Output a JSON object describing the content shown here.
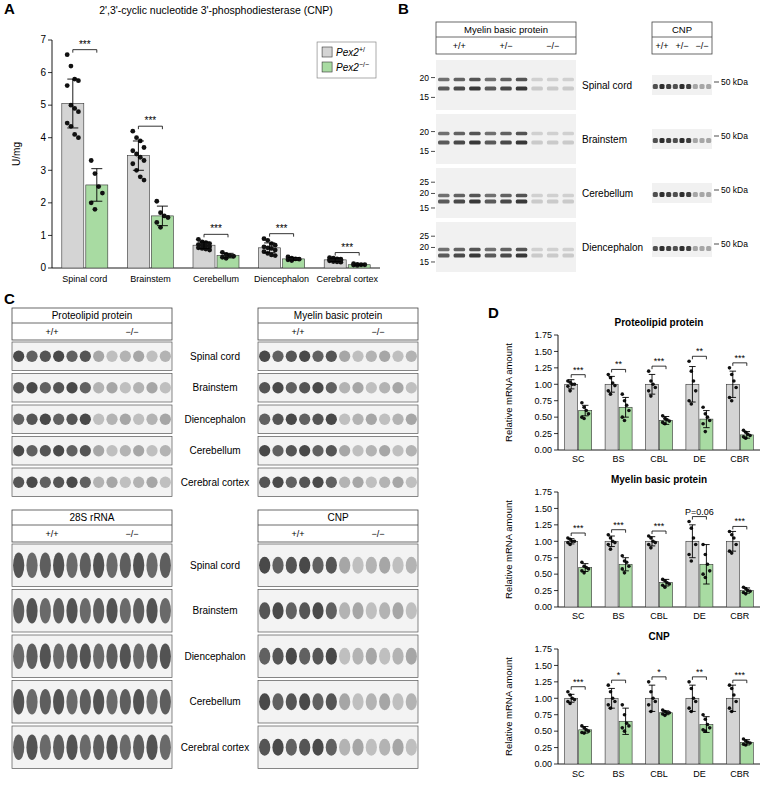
{
  "chart_data": [
    {
      "type": "bar",
      "panel": "A",
      "title": "2',3'-cyclic nucleotide 3'-phosphodiesterase (CNP)",
      "y_label": "U/mg",
      "categories": [
        "Spinal cord",
        "Brainstem",
        "Cerebellum",
        "Diencephalon",
        "Cerebral cortex"
      ],
      "series": [
        {
          "name": "Pex2+/",
          "color": "#d4d4d4",
          "values": [
            5.05,
            3.45,
            0.7,
            0.62,
            0.25
          ],
          "errors": [
            0.75,
            0.45,
            0.1,
            0.15,
            0.05
          ],
          "points": [
            [
              6.55,
              6.2,
              5.8,
              5.75,
              5.6,
              5.0,
              4.9,
              4.8,
              4.45,
              4.35,
              4.1,
              4.0
            ],
            [
              4.2,
              4.0,
              3.9,
              3.7,
              3.6,
              3.5,
              3.4,
              3.3,
              3.2,
              3.0,
              2.8,
              2.7
            ],
            [
              0.88,
              0.8,
              0.78,
              0.75,
              0.72,
              0.7,
              0.68,
              0.65,
              0.62,
              0.6,
              0.58,
              0.55
            ],
            [
              0.9,
              0.85,
              0.75,
              0.7,
              0.65,
              0.62,
              0.6,
              0.55,
              0.5,
              0.45,
              0.4,
              0.38
            ],
            [
              0.32,
              0.3,
              0.28,
              0.27,
              0.26,
              0.25,
              0.24,
              0.23,
              0.22,
              0.2,
              0.19,
              0.18
            ]
          ]
        },
        {
          "name": "Pex2−/−",
          "color": "#a8dba2",
          "values": [
            2.55,
            1.6,
            0.38,
            0.28,
            0.1
          ],
          "errors": [
            0.5,
            0.3,
            0.07,
            0.04,
            0.02
          ],
          "points": [
            [
              3.3,
              2.9,
              2.5,
              2.3,
              2.0,
              1.8
            ],
            [
              2.05,
              1.7,
              1.6,
              1.55,
              1.4,
              1.25
            ],
            [
              0.48,
              0.42,
              0.38,
              0.36,
              0.33,
              0.3
            ],
            [
              0.34,
              0.3,
              0.28,
              0.27,
              0.25,
              0.23
            ],
            [
              0.13,
              0.11,
              0.1,
              0.1,
              0.09,
              0.08
            ]
          ]
        }
      ],
      "annotations": [
        "***",
        "***",
        "***",
        "***",
        "***"
      ],
      "ylim": [
        0,
        7
      ],
      "yticks": [
        0,
        1,
        2,
        3,
        4,
        5,
        6,
        7
      ],
      "grid": false,
      "legend": "top-right"
    },
    {
      "type": "bar",
      "panel": "D",
      "title": "Proteolipid protein",
      "y_label": "Relative mRNA amount",
      "categories": [
        "SC",
        "BS",
        "CBL",
        "DE",
        "CBR"
      ],
      "series": [
        {
          "color": "#d4d4d4",
          "values": [
            1.0,
            1.0,
            1.0,
            1.0,
            1.0
          ],
          "errors": [
            0.07,
            0.12,
            0.15,
            0.27,
            0.2
          ],
          "points": [
            [
              1.05,
              1.03,
              1.0,
              1.0,
              0.97,
              0.9
            ],
            [
              1.15,
              1.1,
              1.02,
              0.98,
              0.9,
              0.85
            ],
            [
              1.2,
              1.05,
              1.0,
              0.95,
              0.9,
              0.82
            ],
            [
              1.35,
              1.2,
              1.05,
              0.9,
              0.75,
              0.7
            ],
            [
              1.25,
              1.15,
              1.05,
              0.95,
              0.8,
              0.75
            ]
          ]
        },
        {
          "color": "#a8dba2",
          "values": [
            0.6,
            0.65,
            0.45,
            0.47,
            0.23
          ],
          "errors": [
            0.08,
            0.15,
            0.06,
            0.13,
            0.05
          ],
          "points": [
            [
              0.72,
              0.65,
              0.6,
              0.55,
              0.5,
              0.48
            ],
            [
              0.85,
              0.75,
              0.68,
              0.6,
              0.5,
              0.45
            ],
            [
              0.52,
              0.48,
              0.46,
              0.44,
              0.42,
              0.4
            ],
            [
              0.65,
              0.55,
              0.5,
              0.45,
              0.4,
              0.28
            ],
            [
              0.3,
              0.27,
              0.24,
              0.22,
              0.2,
              0.18
            ]
          ]
        }
      ],
      "annotations": [
        "***",
        "**",
        "***",
        "**",
        "***"
      ],
      "ylim": [
        0,
        1.75
      ],
      "yticks": [
        {
          "value": 0,
          "label": "0.00"
        },
        0.25,
        {
          "value": 0.5,
          "label": "0.50"
        },
        0.75,
        {
          "value": 1,
          "label": "1.00"
        },
        1.25,
        {
          "value": 1.5,
          "label": "1.50"
        },
        1.75
      ],
      "grid": false
    },
    {
      "type": "bar",
      "title": "Myelin basic protein",
      "y_label": "Relative mRNA amount",
      "categories": [
        "SC",
        "BS",
        "CBL",
        "DE",
        "CBR"
      ],
      "series": [
        {
          "color": "#d4d4d4",
          "values": [
            1.0,
            1.0,
            1.0,
            1.0,
            1.0
          ],
          "errors": [
            0.04,
            0.08,
            0.07,
            0.25,
            0.15
          ],
          "points": [
            [
              1.05,
              1.03,
              1.0,
              1.0,
              0.98,
              0.95
            ],
            [
              1.1,
              1.05,
              1.0,
              0.98,
              0.95,
              0.88
            ],
            [
              1.08,
              1.05,
              1.0,
              0.98,
              0.95,
              0.9
            ],
            [
              1.3,
              1.2,
              1.05,
              0.95,
              0.8,
              0.7
            ],
            [
              1.15,
              1.1,
              1.05,
              0.95,
              0.85,
              0.82
            ]
          ]
        },
        {
          "color": "#a8dba2",
          "values": [
            0.6,
            0.65,
            0.37,
            0.65,
            0.25
          ],
          "errors": [
            0.06,
            0.1,
            0.05,
            0.3,
            0.04
          ],
          "points": [
            [
              0.68,
              0.62,
              0.6,
              0.58,
              0.55,
              0.52
            ],
            [
              0.78,
              0.7,
              0.68,
              0.62,
              0.58,
              0.52
            ],
            [
              0.42,
              0.4,
              0.37,
              0.35,
              0.33,
              0.3
            ],
            [
              0.95,
              0.8,
              0.65,
              0.55,
              0.5,
              0.45
            ],
            [
              0.3,
              0.28,
              0.25,
              0.24,
              0.22,
              0.2
            ]
          ]
        }
      ],
      "annotations": [
        "***",
        "***",
        "***",
        "P=0.06",
        "***"
      ],
      "ylim": [
        0,
        1.75
      ],
      "yticks": [
        {
          "value": 0,
          "label": "0.00"
        },
        0.25,
        {
          "value": 0.5,
          "label": "0.50"
        },
        0.75,
        {
          "value": 1,
          "label": "1.00"
        },
        1.25,
        {
          "value": 1.5,
          "label": "1.50"
        },
        1.75
      ],
      "grid": false
    },
    {
      "type": "bar",
      "title": "CNP",
      "y_label": "Relative mRNA amount",
      "categories": [
        "SC",
        "BS",
        "CBL",
        "DE",
        "CBR"
      ],
      "series": [
        {
          "color": "#d4d4d4",
          "values": [
            1.0,
            1.0,
            1.0,
            1.0,
            1.0
          ],
          "errors": [
            0.06,
            0.15,
            0.2,
            0.2,
            0.2
          ],
          "points": [
            [
              1.1,
              1.05,
              1.0,
              0.98,
              0.95,
              0.92
            ],
            [
              1.2,
              1.1,
              1.0,
              0.95,
              0.9,
              0.85
            ],
            [
              1.25,
              1.1,
              1.0,
              0.95,
              0.9,
              0.8
            ],
            [
              1.25,
              1.15,
              1.0,
              0.95,
              0.85,
              0.8
            ],
            [
              1.2,
              1.15,
              1.05,
              0.95,
              0.85,
              0.8
            ]
          ]
        },
        {
          "color": "#a8dba2",
          "values": [
            0.52,
            0.65,
            0.78,
            0.6,
            0.33
          ],
          "errors": [
            0.05,
            0.2,
            0.03,
            0.12,
            0.04
          ],
          "points": [
            [
              0.58,
              0.55,
              0.52,
              0.5,
              0.48,
              0.47
            ],
            [
              0.9,
              0.75,
              0.62,
              0.58,
              0.55,
              0.5
            ],
            [
              0.82,
              0.8,
              0.78,
              0.78,
              0.76,
              0.74
            ],
            [
              0.75,
              0.68,
              0.6,
              0.55,
              0.52,
              0.5
            ],
            [
              0.38,
              0.35,
              0.33,
              0.32,
              0.3,
              0.29
            ]
          ]
        }
      ],
      "annotations": [
        "***",
        "*",
        "*",
        "**",
        "***"
      ],
      "ylim": [
        0,
        1.75
      ],
      "yticks": [
        {
          "value": 0,
          "label": "0.00"
        },
        0.25,
        {
          "value": 0.5,
          "label": "0.50"
        },
        0.75,
        {
          "value": 1,
          "label": "1.00"
        },
        1.25,
        {
          "value": 1.5,
          "label": "1.50"
        },
        1.75
      ],
      "grid": false
    }
  ],
  "blots": {
    "B": {
      "panel": "B",
      "left_title": "Myelin basic protein",
      "right_title": "CNP",
      "genotypes": [
        "+/+",
        "+/−",
        "−/−"
      ],
      "tissues": [
        "Spinal cord",
        "Brainstem",
        "Cerebellum",
        "Diencephalon"
      ],
      "mw_markers": [
        [
          20,
          15
        ],
        [
          20,
          15
        ],
        [
          25,
          20,
          15
        ],
        [
          25,
          20,
          15
        ]
      ],
      "mw_cnp": "50 kDa"
    },
    "C": {
      "panel": "C",
      "titles": [
        [
          "Proteolipid protein",
          "Myelin basic protein"
        ],
        [
          "28S rRNA",
          "CNP"
        ]
      ],
      "genotypes": [
        "+/+",
        "−/−"
      ],
      "tissues": [
        "Spinal cord",
        "Brainstem",
        "Diencephalon",
        "Cerebellum",
        "Cerebral cortex"
      ]
    }
  }
}
